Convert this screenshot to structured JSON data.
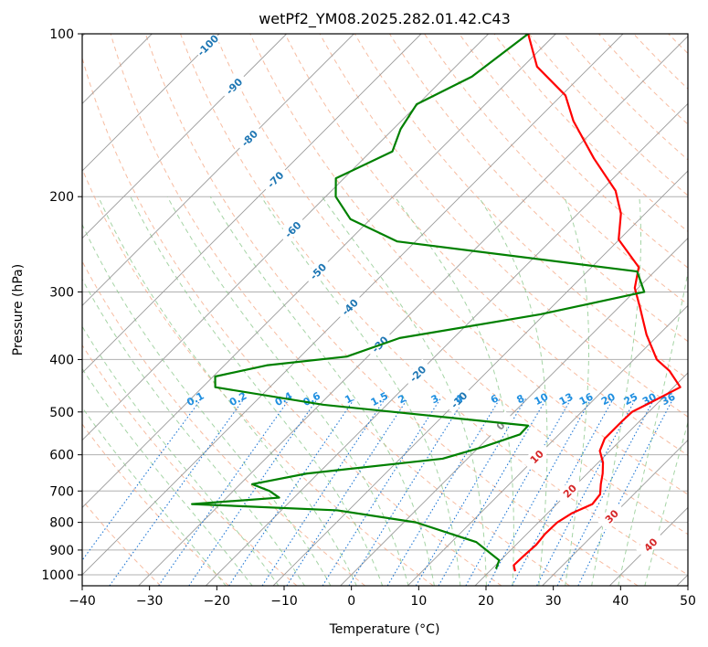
{
  "chart_data": {
    "type": "line",
    "chart_kind": "skew-t log-p diagram",
    "title": "wetPf2_YM08.2025.282.01.42.C43",
    "xlabel": "Temperature (°C)",
    "ylabel": "Pressure (hPa)",
    "xlim": [
      -40,
      50
    ],
    "ylim": [
      1050,
      100
    ],
    "y_scale": "log",
    "grid": true,
    "x_ticks": [
      "−40",
      "−30",
      "−20",
      "−10",
      "0",
      "10",
      "20",
      "30",
      "40",
      "50"
    ],
    "y_ticks": [
      "100",
      "200",
      "300",
      "400",
      "500",
      "600",
      "700",
      "800",
      "900",
      "1000"
    ],
    "x_tick_values": [
      -40,
      -30,
      -20,
      -10,
      0,
      10,
      20,
      30,
      40,
      50
    ],
    "y_tick_values": [
      100,
      200,
      300,
      400,
      500,
      600,
      700,
      800,
      900,
      1000
    ],
    "colors": {
      "temperature": "#ff0000",
      "dewpoint": "#008000",
      "grid": "#b0b0b0",
      "isotherm": "#9a9a9a",
      "dry_adiabat": "#f4a582",
      "moist_adiabat": "#8fc98f",
      "mixing_ratio": "#1f77d4",
      "iso_label_blue": "#1f77b4",
      "iso_label_red": "#d62728",
      "iso_label_gray": "#888888",
      "mixing_label": "#1f8fe0"
    },
    "series": [
      {
        "name": "Temperature",
        "color": "#ff0000",
        "points": [
          [
            23.8,
            985
          ],
          [
            22.7,
            960
          ],
          [
            22.8,
            920
          ],
          [
            23.0,
            880
          ],
          [
            22.7,
            840
          ],
          [
            22.8,
            800
          ],
          [
            23.6,
            770
          ],
          [
            25.3,
            740
          ],
          [
            25.0,
            710
          ],
          [
            23.6,
            680
          ],
          [
            22.3,
            650
          ],
          [
            20.7,
            620
          ],
          [
            18.5,
            590
          ],
          [
            17.4,
            560
          ],
          [
            17.4,
            520
          ],
          [
            17.5,
            500
          ],
          [
            18.9,
            480
          ],
          [
            21.0,
            450
          ],
          [
            17.0,
            420
          ],
          [
            13.4,
            400
          ],
          [
            8.2,
            360
          ],
          [
            3.1,
            320
          ],
          [
            -0.5,
            295
          ],
          [
            -3.0,
            270
          ],
          [
            -10.1,
            240
          ],
          [
            -13.6,
            215
          ],
          [
            -17.8,
            195
          ],
          [
            -25.8,
            170
          ],
          [
            -34.4,
            145
          ],
          [
            -39.4,
            130
          ],
          [
            -47.9,
            115
          ],
          [
            -54.1,
            100
          ]
        ]
      },
      {
        "name": "Dewpoint",
        "color": "#008000",
        "points": [
          [
            20.6,
            975
          ],
          [
            19.8,
            940
          ],
          [
            13.7,
            870
          ],
          [
            1.8,
            800
          ],
          [
            -11.7,
            760
          ],
          [
            -34.2,
            740
          ],
          [
            -22.2,
            720
          ],
          [
            -24.6,
            700
          ],
          [
            -28.2,
            680
          ],
          [
            -21.7,
            650
          ],
          [
            -3.7,
            610
          ],
          [
            0.6,
            580
          ],
          [
            4.2,
            550
          ],
          [
            4.1,
            530
          ],
          [
            -29.4,
            485
          ],
          [
            -48.1,
            450
          ],
          [
            -49.7,
            430
          ],
          [
            -43.7,
            410
          ],
          [
            -33.1,
            395
          ],
          [
            -28.0,
            365
          ],
          [
            -10.6,
            330
          ],
          [
            1.5,
            300
          ],
          [
            -2.6,
            275
          ],
          [
            -42.7,
            242
          ],
          [
            -53.0,
            220
          ],
          [
            -58.5,
            200
          ],
          [
            -61.2,
            185
          ],
          [
            -56.8,
            165
          ],
          [
            -58.9,
            150
          ],
          [
            -60.2,
            135
          ],
          [
            -56.1,
            120
          ],
          [
            -54.1,
            100
          ]
        ]
      }
    ],
    "isotherm_labels": [
      {
        "text": "-100",
        "t": -100,
        "p": 105
      },
      {
        "text": "-90",
        "t": -90,
        "p": 125
      },
      {
        "text": "-80",
        "t": -80,
        "p": 156
      },
      {
        "text": "-70",
        "t": -70,
        "p": 186
      },
      {
        "text": "-60",
        "t": -60,
        "p": 230
      },
      {
        "text": "-50",
        "t": -50,
        "p": 275
      },
      {
        "text": "-40",
        "t": -40,
        "p": 320
      },
      {
        "text": "-30",
        "t": -30,
        "p": 375
      },
      {
        "text": "-20",
        "t": -20,
        "p": 425
      },
      {
        "text": "-10",
        "t": -10,
        "p": 475
      },
      {
        "text": "0",
        "t": 0,
        "p": 530
      },
      {
        "text": "10",
        "t": 10,
        "p": 605
      },
      {
        "text": "20",
        "t": 20,
        "p": 700
      },
      {
        "text": "30",
        "t": 30,
        "p": 780
      },
      {
        "text": "40",
        "t": 40,
        "p": 880
      }
    ],
    "mixing_ratio_labels": [
      "0.1",
      "0.2",
      "0.4",
      "0.6",
      "1",
      "1.5",
      "2",
      "3",
      "4",
      "6",
      "8",
      "10",
      "13",
      "16",
      "20",
      "25",
      "30",
      "36"
    ],
    "mixing_ratio_label_pressure": 485
  }
}
